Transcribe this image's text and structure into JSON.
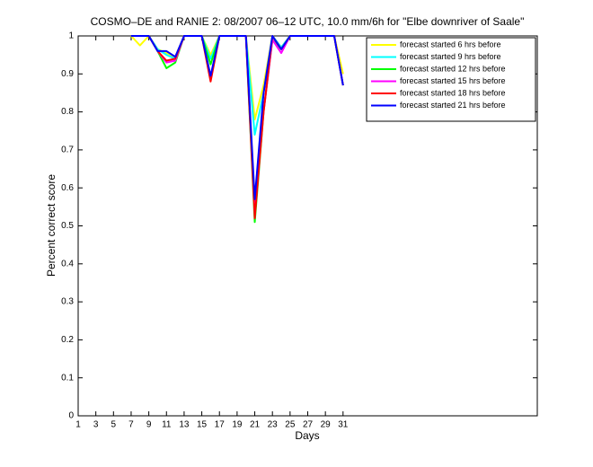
{
  "chart_data": {
    "type": "line",
    "title": "COSMO–DE and RANIE 2: 08/2007 06–12 UTC, 10.0 mm/6h for \"Elbe downriver of Saale\"",
    "x_label": "Days",
    "y_label": "Percent correct score",
    "x": [
      1,
      2,
      3,
      4,
      5,
      6,
      7,
      8,
      9,
      10,
      11,
      12,
      13,
      14,
      15,
      16,
      17,
      18,
      19,
      20,
      21,
      22,
      23,
      24,
      25,
      26,
      27,
      28,
      29,
      30,
      31
    ],
    "xlim": [
      1,
      53
    ],
    "xticks": [
      1,
      3,
      5,
      7,
      9,
      11,
      13,
      15,
      17,
      19,
      21,
      23,
      25,
      27,
      29,
      31
    ],
    "ylim": [
      0,
      1
    ],
    "yticks": [
      0,
      0.1,
      0.2,
      0.3,
      0.4,
      0.5,
      0.6,
      0.7,
      0.8,
      0.9,
      1
    ],
    "legend_position": "upper right",
    "series": [
      {
        "name": "forecast started 6 hrs before",
        "color": "#ffff00",
        "values": [
          null,
          null,
          null,
          null,
          null,
          null,
          1,
          0.975,
          1,
          0.965,
          0.955,
          0.945,
          1,
          1,
          1,
          0.95,
          1,
          1,
          1,
          1,
          0.78,
          0.87,
          1,
          0.97,
          1,
          1,
          1,
          1,
          1,
          1,
          0.9
        ]
      },
      {
        "name": "forecast started 9 hrs before",
        "color": "#00ffff",
        "values": [
          null,
          null,
          null,
          null,
          null,
          null,
          1,
          1,
          1,
          0.965,
          0.95,
          0.94,
          1,
          1,
          1,
          0.94,
          1,
          1,
          1,
          1,
          0.74,
          0.85,
          1,
          0.97,
          1,
          1,
          1,
          1,
          1,
          1,
          0.87
        ]
      },
      {
        "name": "forecast started 12 hrs before",
        "color": "#00ff00",
        "values": [
          null,
          null,
          null,
          null,
          null,
          null,
          1,
          1,
          1,
          0.96,
          0.915,
          0.93,
          1,
          1,
          1,
          0.925,
          1,
          1,
          1,
          1,
          0.51,
          0.8,
          0.99,
          0.965,
          1,
          1,
          1,
          1,
          1,
          1,
          0.87
        ]
      },
      {
        "name": "forecast started 15 hrs before",
        "color": "#ff00ff",
        "values": [
          null,
          null,
          null,
          null,
          null,
          null,
          1,
          1,
          1,
          0.96,
          0.93,
          0.935,
          1,
          1,
          1,
          0.89,
          1,
          1,
          1,
          1,
          0.55,
          0.8,
          0.99,
          0.955,
          1,
          1,
          1,
          1,
          1,
          1,
          0.87
        ]
      },
      {
        "name": "forecast started 18 hrs before",
        "color": "#ff0000",
        "values": [
          null,
          null,
          null,
          null,
          null,
          null,
          1,
          1,
          1,
          0.96,
          0.935,
          0.94,
          1,
          1,
          1,
          0.88,
          1,
          1,
          1,
          1,
          0.52,
          0.8,
          1,
          0.965,
          1,
          1,
          1,
          1,
          1,
          1,
          0.87
        ]
      },
      {
        "name": "forecast started 21 hrs before",
        "color": "#0000ff",
        "values": [
          null,
          null,
          null,
          null,
          null,
          null,
          1,
          1,
          1,
          0.96,
          0.96,
          0.945,
          1,
          1,
          1,
          0.895,
          1,
          1,
          1,
          1,
          0.57,
          0.85,
          1,
          0.965,
          1,
          1,
          1,
          1,
          1,
          1,
          0.87
        ]
      }
    ]
  }
}
